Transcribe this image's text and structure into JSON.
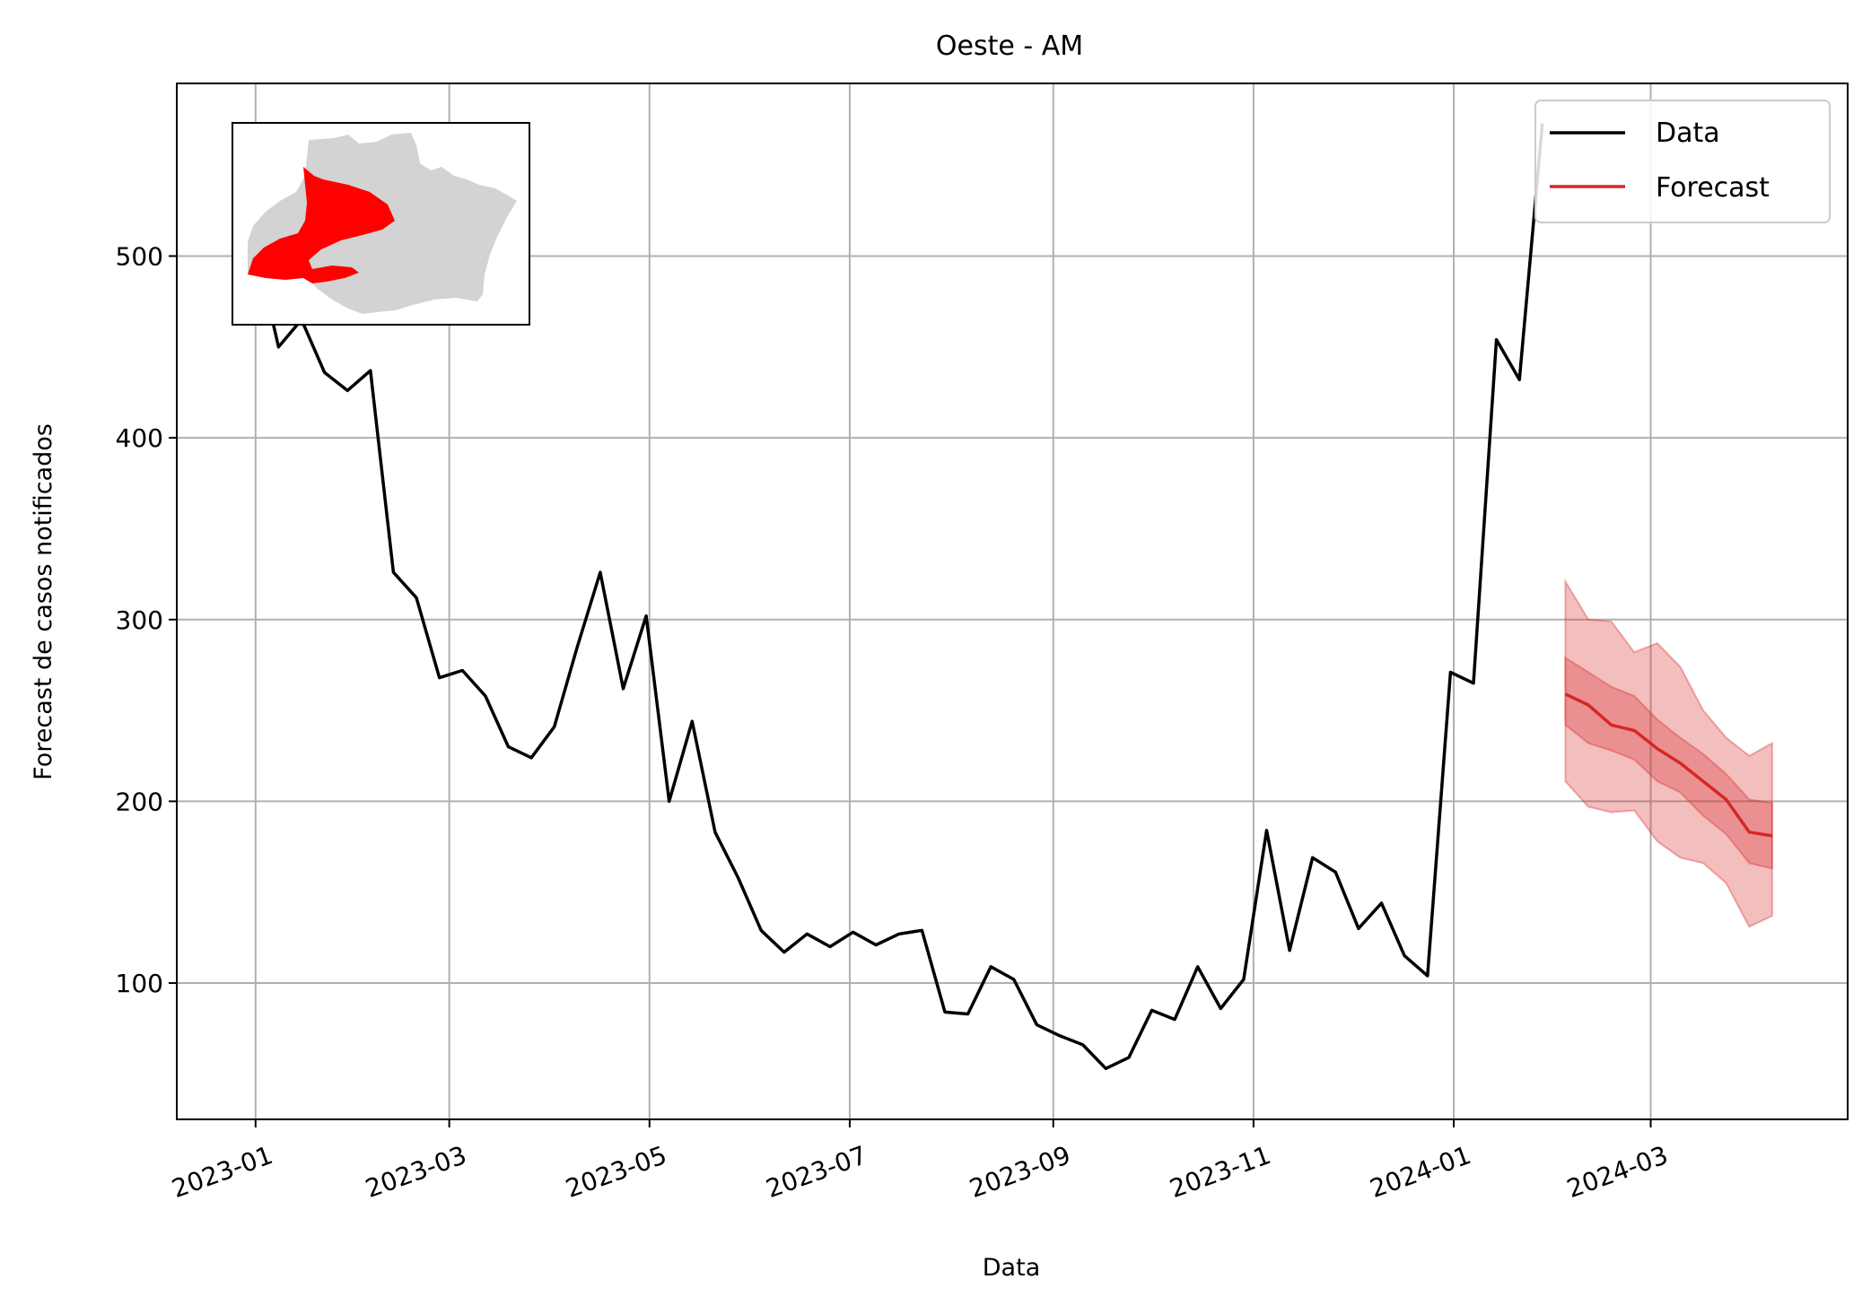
{
  "chart_data": {
    "type": "line",
    "title": "Oeste - AM",
    "xlabel": "Data",
    "ylabel": "Forecast de casos notificados",
    "x_range": [
      "2022-12-08",
      "2024-04-30"
    ],
    "ylim": [
      25,
      595
    ],
    "yticks": [
      100,
      200,
      300,
      400,
      500
    ],
    "xticks": [
      "2023-01",
      "2023-03",
      "2023-05",
      "2023-07",
      "2023-09",
      "2023-11",
      "2024-01",
      "2024-03"
    ],
    "grid": true,
    "legend": {
      "placement": "top-right",
      "entries": [
        "Data",
        "Forecast"
      ]
    },
    "colors": {
      "data": "#000000",
      "forecast": "#d62728",
      "band": "#d62728",
      "grid": "#b0b0b0"
    },
    "series": [
      {
        "name": "Data",
        "x": [
          "2023-01-01",
          "2023-01-08",
          "2023-01-15",
          "2023-01-22",
          "2023-01-29",
          "2023-02-05",
          "2023-02-12",
          "2023-02-19",
          "2023-02-26",
          "2023-03-05",
          "2023-03-12",
          "2023-03-19",
          "2023-03-26",
          "2023-04-02",
          "2023-04-09",
          "2023-04-16",
          "2023-04-23",
          "2023-04-30",
          "2023-05-07",
          "2023-05-14",
          "2023-05-21",
          "2023-05-28",
          "2023-06-04",
          "2023-06-11",
          "2023-06-18",
          "2023-06-25",
          "2023-07-02",
          "2023-07-09",
          "2023-07-16",
          "2023-07-23",
          "2023-07-30",
          "2023-08-06",
          "2023-08-13",
          "2023-08-20",
          "2023-08-27",
          "2023-09-03",
          "2023-09-10",
          "2023-09-17",
          "2023-09-24",
          "2023-10-01",
          "2023-10-08",
          "2023-10-15",
          "2023-10-22",
          "2023-10-29",
          "2023-11-05",
          "2023-11-12",
          "2023-11-19",
          "2023-11-26",
          "2023-12-03",
          "2023-12-10",
          "2023-12-17",
          "2023-12-24",
          "2023-12-31",
          "2024-01-07",
          "2024-01-14",
          "2024-01-21",
          "2024-01-28"
        ],
        "y": [
          505,
          450,
          465,
          436,
          426,
          437,
          326,
          312,
          268,
          272,
          258,
          230,
          224,
          241,
          285,
          326,
          262,
          302,
          200,
          244,
          183,
          158,
          129,
          117,
          127,
          120,
          128,
          121,
          127,
          129,
          84,
          83,
          109,
          102,
          77,
          71,
          66,
          53,
          59,
          85,
          80,
          109,
          86,
          102,
          184,
          118,
          169,
          161,
          130,
          144,
          115,
          104,
          271,
          265,
          454,
          432,
          573
        ]
      },
      {
        "name": "Forecast",
        "x": [
          "2024-02-04",
          "2024-02-11",
          "2024-02-18",
          "2024-02-25",
          "2024-03-03",
          "2024-03-10",
          "2024-03-17",
          "2024-03-24",
          "2024-03-31",
          "2024-04-07"
        ],
        "y": [
          259,
          253,
          242,
          239,
          229,
          221,
          211,
          201,
          183,
          181
        ],
        "inner_band": {
          "lower": [
            242,
            232,
            228,
            223,
            211,
            205,
            192,
            182,
            166,
            163
          ],
          "upper": [
            279,
            271,
            263,
            258,
            245,
            235,
            226,
            215,
            201,
            199
          ]
        },
        "outer_band": {
          "lower": [
            211,
            197,
            194,
            195,
            178,
            169,
            166,
            155,
            131,
            137
          ],
          "upper": [
            321,
            300,
            299,
            282,
            287,
            274,
            250,
            235,
            225,
            232
          ]
        }
      }
    ]
  },
  "inset_map": {
    "description_icon": "amazonas-state-map-icon",
    "highlight_color": "#ff0000",
    "base_color": "#d3d3d3"
  }
}
